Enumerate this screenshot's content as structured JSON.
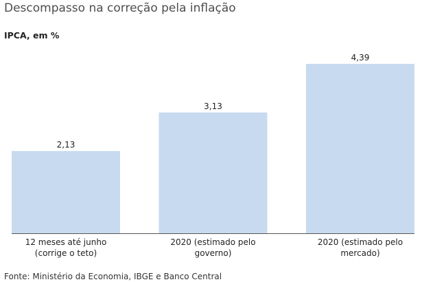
{
  "title": "Descompasso na correção pela inflação",
  "subtitle": "IPCA, em %",
  "source": "Fonte: Ministério da Economia, IBGE e Banco Central",
  "colors": {
    "bar": "#c8daef",
    "baseline": "#555555"
  },
  "chart_data": {
    "type": "bar",
    "categories": [
      [
        "12 meses até junho",
        "(corrige o teto)"
      ],
      [
        "2020 (estimado pelo",
        "governo)"
      ],
      [
        "2020 (estimado pelo",
        "mercado)"
      ]
    ],
    "values": [
      2.13,
      3.13,
      4.39
    ],
    "value_labels": [
      "2,13",
      "3,13",
      "4,39"
    ],
    "ylim": [
      0,
      4.39
    ],
    "grid": false,
    "legend": "none"
  }
}
